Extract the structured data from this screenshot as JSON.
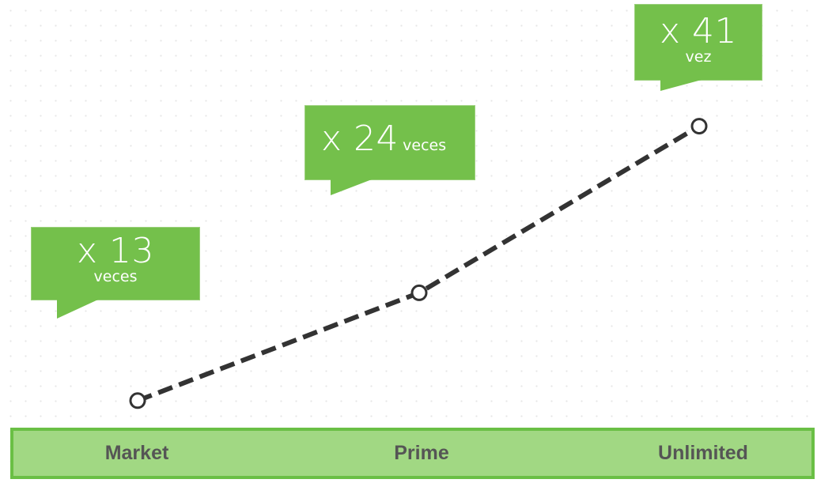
{
  "chart_data": {
    "type": "line",
    "categories": [
      "Market",
      "Prime",
      "Unlimited"
    ],
    "values": [
      13,
      24,
      41
    ],
    "ylim": [
      0,
      50
    ],
    "line_style": "dashed",
    "grid": "dotted",
    "data_labels": [
      {
        "prefix": "x",
        "value": "13",
        "unit": "veces"
      },
      {
        "prefix": "x",
        "value": "24",
        "unit": "veces"
      },
      {
        "prefix": "x",
        "value": "41",
        "unit": "vez"
      }
    ]
  },
  "colors": {
    "callout": "#74c04b",
    "bar": "#a1d883",
    "bar_border": "#6abf45",
    "line": "#333333",
    "tier_text": "#555555"
  }
}
